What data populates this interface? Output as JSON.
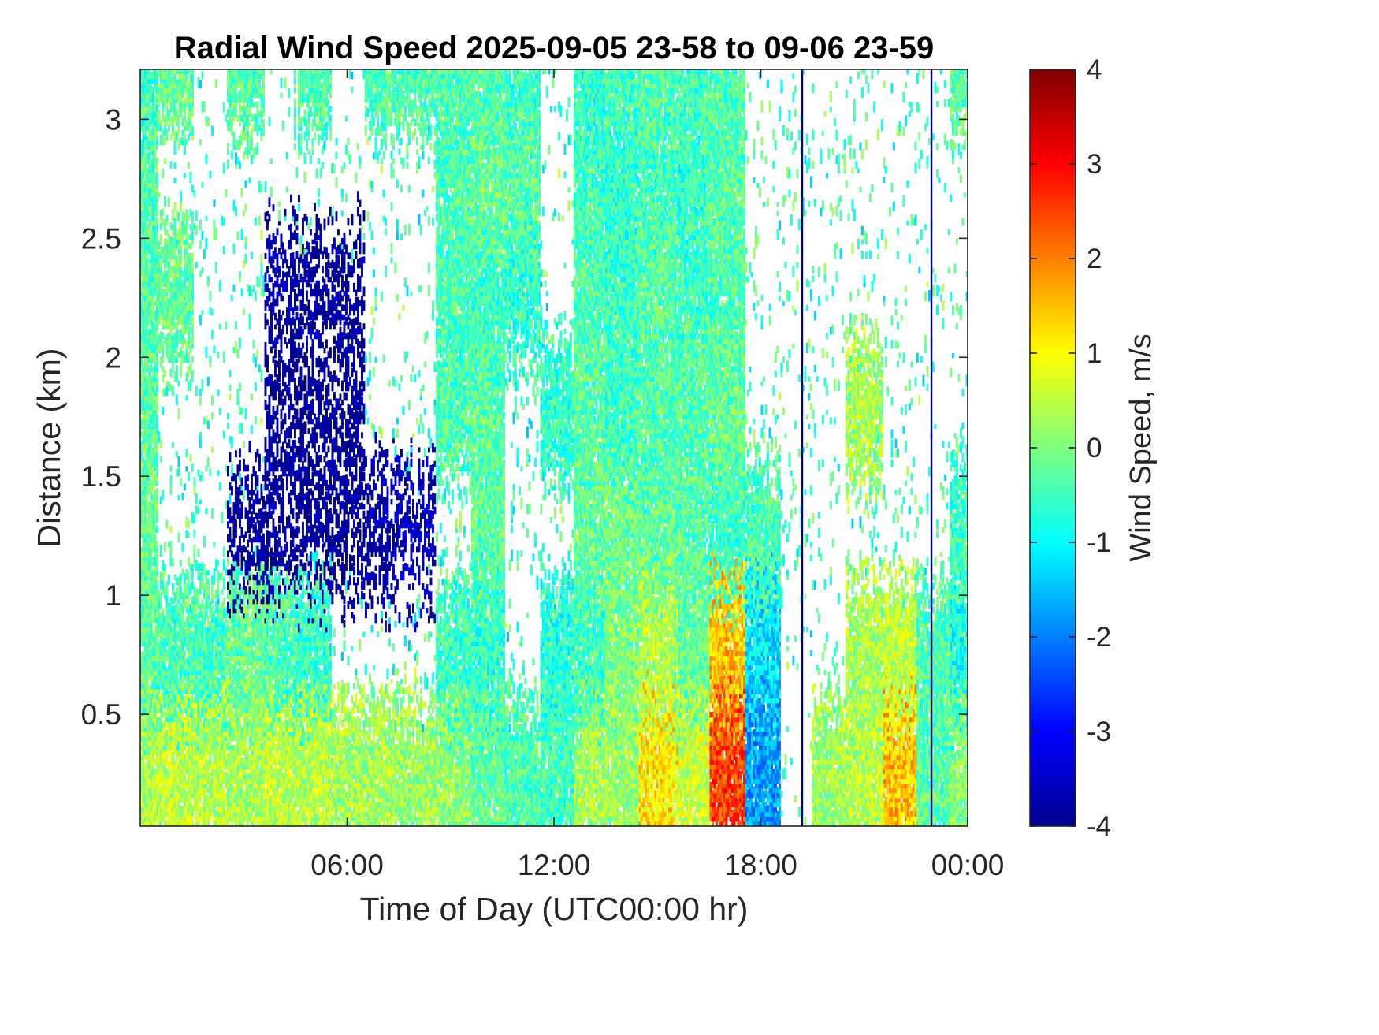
{
  "chart_data": {
    "type": "heatmap",
    "title": "Radial Wind Speed 2025-09-05 23-58 to 09-06 23-59",
    "xlabel": "Time of Day (UTC00:00 hr)",
    "ylabel": "Distance (km)",
    "x_unit": "hour",
    "xlim": [
      0,
      24
    ],
    "x_ticks": [
      {
        "value": 6,
        "label": "06:00"
      },
      {
        "value": 12,
        "label": "12:00"
      },
      {
        "value": 18,
        "label": "18:00"
      },
      {
        "value": 24,
        "label": "00:00"
      }
    ],
    "ylim": [
      0.03,
      3.21
    ],
    "y_ticks": [
      {
        "value": 0.5,
        "label": "0.5"
      },
      {
        "value": 1,
        "label": "1"
      },
      {
        "value": 1.5,
        "label": "1.5"
      },
      {
        "value": 2,
        "label": "2"
      },
      {
        "value": 2.5,
        "label": "2.5"
      },
      {
        "value": 3,
        "label": "3"
      }
    ],
    "colorbar": {
      "label": "Wind Speed, m/s",
      "colormap": "jet",
      "clim": [
        -4,
        4
      ],
      "ticks": [
        {
          "value": 4,
          "label": "4"
        },
        {
          "value": 3,
          "label": "3"
        },
        {
          "value": 2,
          "label": "2"
        },
        {
          "value": 1,
          "label": "1"
        },
        {
          "value": 0,
          "label": "0"
        },
        {
          "value": -1,
          "label": "-1"
        },
        {
          "value": -2,
          "label": "-2"
        },
        {
          "value": -3,
          "label": "-3"
        },
        {
          "value": -4,
          "label": "-4"
        }
      ],
      "stops": [
        "#00008f",
        "#0000ff",
        "#00ffff",
        "#ffff00",
        "#ff0000",
        "#800000"
      ]
    },
    "grid": false,
    "legend": "none",
    "field": {
      "time_hours": [
        0,
        1,
        2,
        3,
        4,
        5,
        6,
        7,
        8,
        9,
        10,
        11,
        12,
        13,
        14,
        15,
        16,
        17,
        18,
        19,
        20,
        21,
        22,
        23,
        24
      ],
      "distance_km": [
        0.25,
        0.75,
        1.25,
        1.75,
        2.25,
        2.75,
        3.15
      ],
      "wind_speed_ms": [
        [
          0.4,
          0.5,
          0.4,
          0.3,
          0.5,
          0.4,
          0.3,
          0.3,
          0.2,
          0.1,
          -0.2,
          -0.4,
          -0.5,
          0.3,
          0.2,
          1.2,
          0.6,
          2.5,
          -1.8,
          null,
          0.2,
          0.4,
          1.5,
          -0.3,
          0.1
        ],
        [
          -0.3,
          -0.4,
          -0.4,
          -0.2,
          -0.4,
          -0.6,
          null,
          null,
          null,
          -0.5,
          -0.6,
          null,
          -0.7,
          -0.5,
          0.0,
          0.4,
          -0.2,
          1.5,
          -1.2,
          null,
          null,
          0.3,
          0.5,
          -0.4,
          -0.8
        ],
        [
          -0.2,
          null,
          null,
          -4.0,
          -4.0,
          -4.0,
          -4.0,
          -3.8,
          -3.6,
          null,
          -0.3,
          null,
          null,
          -0.2,
          -0.1,
          -0.2,
          -0.3,
          -0.5,
          -0.4,
          null,
          null,
          null,
          null,
          null,
          -0.5
        ],
        [
          -0.3,
          null,
          null,
          null,
          -4.0,
          -4.0,
          -4.0,
          null,
          null,
          -0.4,
          -0.3,
          null,
          -0.6,
          -0.3,
          -0.5,
          -0.4,
          -0.3,
          -0.2,
          null,
          null,
          null,
          0.3,
          null,
          null,
          null
        ],
        [
          -0.4,
          -0.2,
          null,
          null,
          -3.8,
          -4.0,
          -3.9,
          null,
          null,
          -0.4,
          -0.5,
          -0.6,
          null,
          -0.4,
          -0.5,
          -0.3,
          -0.5,
          -0.4,
          null,
          null,
          null,
          null,
          null,
          null,
          null
        ],
        [
          -0.3,
          null,
          null,
          null,
          null,
          null,
          null,
          null,
          null,
          -0.4,
          -0.2,
          -0.3,
          null,
          -0.5,
          -0.6,
          -0.5,
          -0.6,
          -0.3,
          null,
          null,
          null,
          null,
          null,
          null,
          null
        ],
        [
          -0.5,
          -0.2,
          null,
          -0.3,
          null,
          -0.4,
          null,
          -0.4,
          -0.4,
          -0.4,
          -0.3,
          -0.5,
          null,
          -0.6,
          -0.5,
          -0.4,
          -0.5,
          -0.4,
          null,
          null,
          null,
          null,
          null,
          null,
          -0.3
        ]
      ],
      "full_column_events": [
        {
          "time_hours": 19.2,
          "wind_speed_ms": -4.0
        },
        {
          "time_hours": 22.95,
          "wind_speed_ms": -4.0
        }
      ]
    }
  }
}
